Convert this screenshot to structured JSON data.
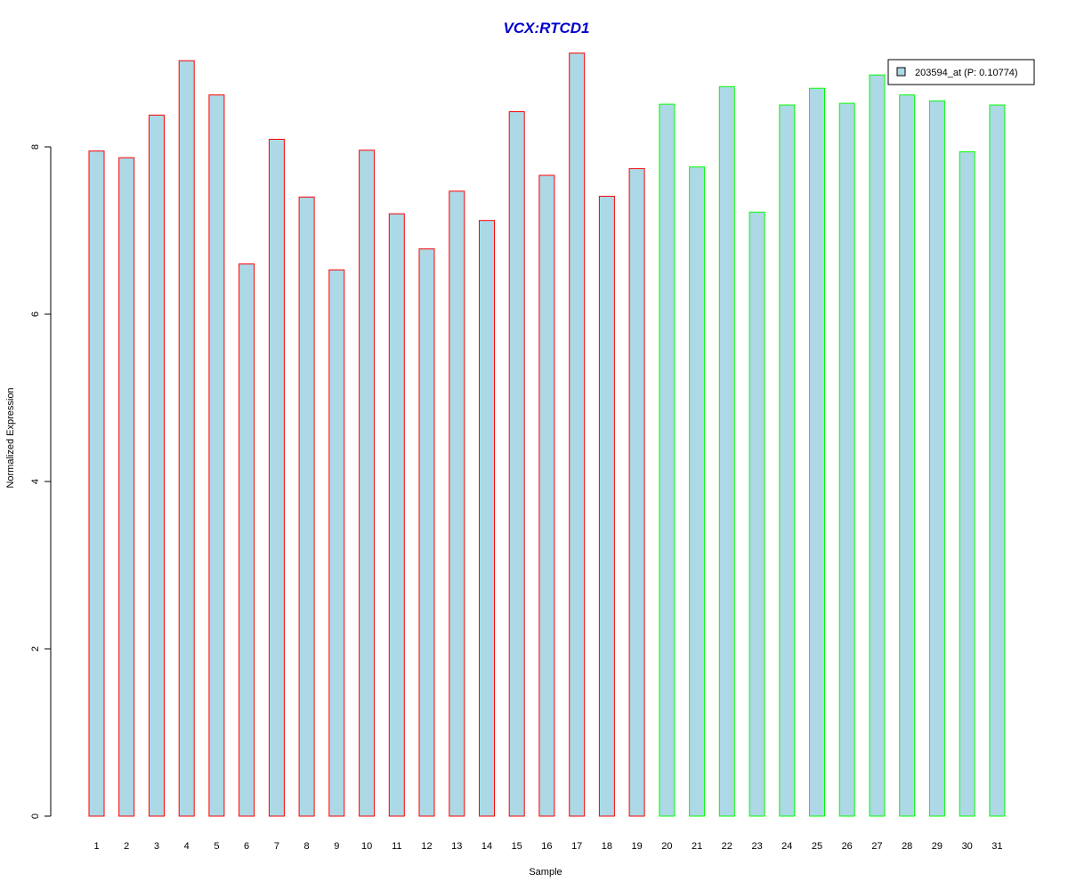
{
  "chart_data": {
    "type": "bar",
    "title": "VCX:RTCD1",
    "xlabel": "Sample",
    "ylabel": "Normalized Expression",
    "ylim": [
      0,
      9.3
    ],
    "yticks": [
      0,
      2,
      4,
      6,
      8
    ],
    "categories": [
      "1",
      "2",
      "3",
      "4",
      "5",
      "6",
      "7",
      "8",
      "9",
      "10",
      "11",
      "12",
      "13",
      "14",
      "15",
      "16",
      "17",
      "18",
      "19",
      "20",
      "21",
      "22",
      "23",
      "24",
      "25",
      "26",
      "27",
      "28",
      "29",
      "30",
      "31"
    ],
    "series": [
      {
        "name": "203594_at (P: 0.10774)",
        "values": [
          7.95,
          7.87,
          8.38,
          9.03,
          8.62,
          6.6,
          8.09,
          7.4,
          6.53,
          7.96,
          7.2,
          6.78,
          7.47,
          7.12,
          8.42,
          7.66,
          9.12,
          7.41,
          7.74,
          8.51,
          7.76,
          8.72,
          7.22,
          8.5,
          8.7,
          8.52,
          8.86,
          8.62,
          8.55,
          7.94,
          8.5
        ],
        "groups": [
          1,
          1,
          1,
          1,
          1,
          1,
          1,
          1,
          1,
          1,
          1,
          1,
          1,
          1,
          1,
          1,
          1,
          1,
          1,
          2,
          2,
          2,
          2,
          2,
          2,
          2,
          2,
          2,
          2,
          2,
          2
        ]
      }
    ],
    "legend_position": "top-right",
    "grid": false,
    "colors": {
      "title": "#0000cc",
      "bar_fill": "#add8e6",
      "group_1_border": "#ff0000",
      "group_2_border": "#00ff00",
      "axis": "#000000"
    }
  }
}
